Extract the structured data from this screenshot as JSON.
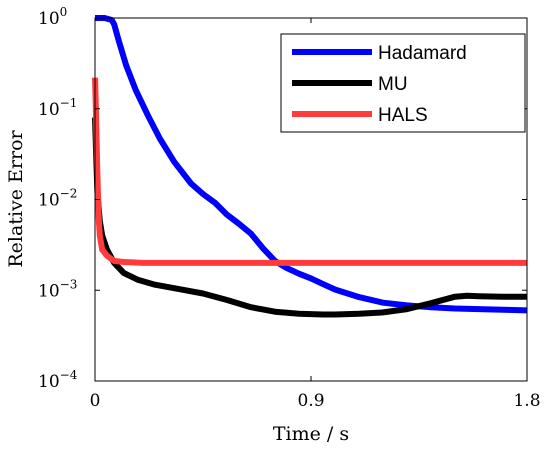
{
  "chart_data": {
    "type": "line",
    "xlabel": "Time / s",
    "ylabel": "Relative Error",
    "xlim": [
      0,
      1.8
    ],
    "ylim": [
      0.0001,
      1
    ],
    "yscale": "log",
    "grid": false,
    "legend_position": "top-right",
    "x_ticks": [
      {
        "value": 0,
        "label": "0"
      },
      {
        "value": 0.9,
        "label": "0.9"
      },
      {
        "value": 1.8,
        "label": "1.8"
      }
    ],
    "y_ticks": [
      {
        "value": 0.0001,
        "base": "10",
        "exp": "−4"
      },
      {
        "value": 0.001,
        "base": "10",
        "exp": "−3"
      },
      {
        "value": 0.01,
        "base": "10",
        "exp": "−2"
      },
      {
        "value": 0.1,
        "base": "10",
        "exp": "−1"
      },
      {
        "value": 1,
        "base": "10",
        "exp": "0"
      }
    ],
    "series": [
      {
        "name": "Hadamard",
        "color": "#0000ff",
        "x": [
          0.0,
          0.04,
          0.07,
          0.08,
          0.1,
          0.13,
          0.17,
          0.22,
          0.27,
          0.33,
          0.4,
          0.45,
          0.5,
          0.55,
          0.6,
          0.65,
          0.7,
          0.75,
          0.8,
          0.85,
          0.9,
          0.95,
          1.0,
          1.1,
          1.2,
          1.3,
          1.4,
          1.5,
          1.6,
          1.7,
          1.8
        ],
        "y": [
          1.0,
          1.0,
          0.95,
          0.85,
          0.55,
          0.3,
          0.16,
          0.085,
          0.047,
          0.026,
          0.015,
          0.0115,
          0.0092,
          0.0068,
          0.0054,
          0.0042,
          0.0029,
          0.0021,
          0.00175,
          0.00152,
          0.00135,
          0.00117,
          0.00102,
          0.00084,
          0.00073,
          0.00068,
          0.00065,
          0.00063,
          0.00062,
          0.00061,
          0.0006
        ]
      },
      {
        "name": "MU",
        "color": "#000000",
        "x": [
          0.0,
          0.005,
          0.01,
          0.02,
          0.03,
          0.05,
          0.08,
          0.12,
          0.18,
          0.25,
          0.35,
          0.45,
          0.55,
          0.65,
          0.75,
          0.85,
          0.95,
          1.0,
          1.1,
          1.2,
          1.3,
          1.4,
          1.5,
          1.55,
          1.6,
          1.7,
          1.8
        ],
        "y": [
          0.08,
          0.03,
          0.012,
          0.0058,
          0.004,
          0.0028,
          0.002,
          0.00155,
          0.0013,
          0.00115,
          0.00103,
          0.00092,
          0.00078,
          0.00065,
          0.00058,
          0.00055,
          0.00054,
          0.00054,
          0.00055,
          0.00057,
          0.00062,
          0.00072,
          0.00085,
          0.00087,
          0.00086,
          0.00085,
          0.00085
        ]
      },
      {
        "name": "HALS",
        "color": "#ff3b3b",
        "x": [
          0.0,
          0.004,
          0.008,
          0.012,
          0.016,
          0.02,
          0.03,
          0.05,
          0.08,
          0.12,
          0.2,
          0.4,
          0.8,
          1.2,
          1.8
        ],
        "y": [
          0.22,
          0.09,
          0.03,
          0.012,
          0.006,
          0.004,
          0.0028,
          0.0024,
          0.0021,
          0.00205,
          0.002,
          0.002,
          0.002,
          0.002,
          0.002
        ]
      }
    ]
  }
}
